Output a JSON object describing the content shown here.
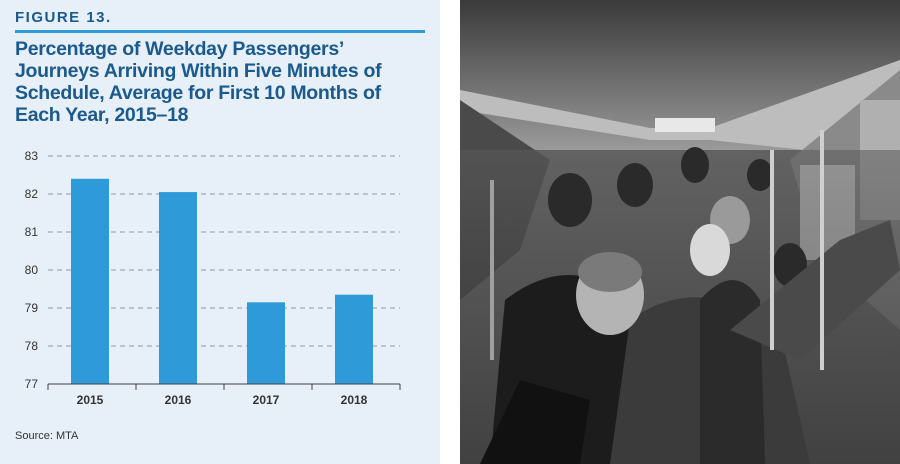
{
  "figure": {
    "label": "FIGURE 13.",
    "source": "Source: MTA"
  },
  "chart_data": {
    "type": "bar",
    "title": "Percentage of Weekday Passengers’ Journeys Arriving Within Five Minutes of Schedule, Average for First 10 Months of Each Year, 2015–18",
    "categories": [
      "2015",
      "2016",
      "2017",
      "2018"
    ],
    "values": [
      82.4,
      82.05,
      79.15,
      79.35
    ],
    "yticks": [
      77,
      78,
      79,
      80,
      81,
      82,
      83
    ],
    "ylim": [
      77,
      83
    ],
    "xlabel": "",
    "ylabel": "",
    "grid": "horizontal-dashed",
    "bar_color": "#2e9ad8"
  },
  "photo": {
    "subject": "crowded-subway-car-photo"
  }
}
